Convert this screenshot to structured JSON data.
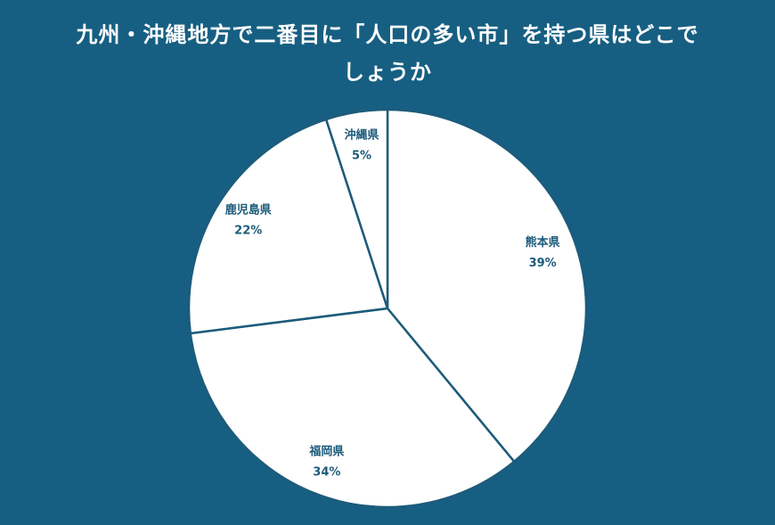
{
  "chart_data": {
    "type": "pie",
    "title": "九州・沖縄地方で二番目に「人口の多い市」を持つ県はどこでしょうか",
    "categories": [
      "熊本県",
      "福岡県",
      "鹿児島県",
      "沖縄県"
    ],
    "values": [
      39,
      34,
      22,
      5
    ],
    "value_labels": [
      "39%",
      "34%",
      "22%",
      "5%"
    ],
    "color": "#ffffff"
  }
}
